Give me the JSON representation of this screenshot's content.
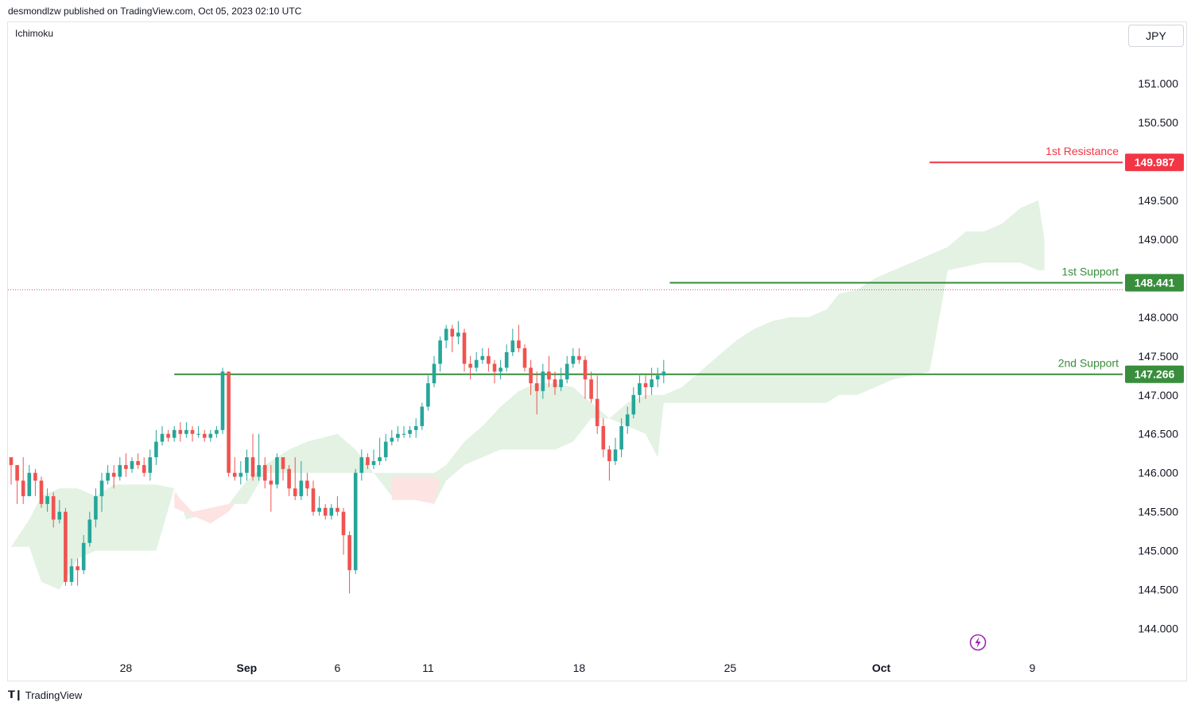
{
  "header": {
    "publisher": "desmondlzw published on TradingView.com, Oct 05, 2023 02:10 UTC"
  },
  "indicator": "Ichimoku",
  "currency": "JPY",
  "footer": {
    "logo_text": "TradingView",
    "logo_icon": "tradingview-logo-icon"
  },
  "colors": {
    "up": "#26a69a",
    "down": "#ef5350",
    "resistance": "#f23645",
    "support": "#388e3c",
    "cloud_bull": "#e3f2e3",
    "cloud_bear": "#fde4e3",
    "grid_text": "#131722"
  },
  "chart_data": {
    "type": "candlestick",
    "title": "",
    "ylim": [
      143.7,
      151.5
    ],
    "y_ticks": [
      "151.000",
      "150.500",
      "150.000",
      "149.500",
      "149.000",
      "148.500",
      "148.000",
      "147.500",
      "147.000",
      "146.500",
      "146.000",
      "145.500",
      "145.000",
      "144.500",
      "144.000"
    ],
    "x_ticks": [
      {
        "label": "28",
        "bar": 19,
        "bold": false
      },
      {
        "label": "Sep",
        "bar": 39,
        "bold": true
      },
      {
        "label": "6",
        "bar": 54,
        "bold": false
      },
      {
        "label": "11",
        "bar": 69,
        "bold": false
      },
      {
        "label": "18",
        "bar": 94,
        "bold": false
      },
      {
        "label": "25",
        "bar": 119,
        "bold": false
      },
      {
        "label": "Oct",
        "bar": 144,
        "bold": true
      },
      {
        "label": "9",
        "bar": 169,
        "bold": false
      }
    ],
    "levels": [
      {
        "name": "1st Resistance",
        "price": 149.987,
        "price_label": "149.987",
        "role": "resistance",
        "from_bar": 152
      },
      {
        "name": "1st Support",
        "price": 148.441,
        "price_label": "148.441",
        "role": "support",
        "from_bar": 109
      },
      {
        "name": "2nd Support",
        "price": 147.266,
        "price_label": "147.266",
        "role": "support",
        "from_bar": 27
      }
    ],
    "last_price_dotted": 148.35,
    "cloud": [
      [
        0,
        145.05,
        145.05
      ],
      [
        3,
        145.4,
        145.05
      ],
      [
        5,
        145.7,
        144.6
      ],
      [
        8,
        145.8,
        144.5
      ],
      [
        11,
        145.8,
        144.9
      ],
      [
        14,
        145.7,
        145.0
      ],
      [
        17,
        145.85,
        145.0
      ],
      [
        20,
        145.85,
        145.0
      ],
      [
        24,
        145.85,
        145.0
      ],
      [
        27,
        145.8,
        145.8
      ],
      [
        29,
        145.5,
        145.4
      ],
      [
        33,
        145.5,
        145.5
      ],
      [
        36,
        145.6,
        145.6
      ],
      [
        39,
        145.9,
        145.6
      ],
      [
        42,
        146.1,
        146.0
      ],
      [
        46,
        146.3,
        146.0
      ],
      [
        49,
        146.4,
        146.0
      ],
      [
        54,
        146.5,
        146.0
      ],
      [
        57,
        146.3,
        146.0
      ],
      [
        60,
        146.0,
        146.0
      ],
      [
        63,
        146.0,
        145.7
      ],
      [
        67,
        146.0,
        145.7
      ],
      [
        70,
        146.0,
        145.6
      ],
      [
        72,
        146.1,
        145.9
      ],
      [
        75,
        146.4,
        146.1
      ],
      [
        78,
        146.6,
        146.2
      ],
      [
        81,
        146.85,
        146.3
      ],
      [
        84,
        147.05,
        146.3
      ],
      [
        87,
        147.15,
        146.3
      ],
      [
        90,
        147.15,
        146.3
      ],
      [
        93,
        147.1,
        146.4
      ],
      [
        96,
        146.9,
        146.7
      ],
      [
        99,
        146.7,
        146.7
      ],
      [
        102,
        146.9,
        146.6
      ],
      [
        105,
        147.0,
        146.5
      ],
      [
        107,
        147.0,
        146.2
      ],
      [
        108,
        147.0,
        146.9
      ],
      [
        111,
        147.1,
        146.9
      ],
      [
        114,
        147.3,
        146.9
      ],
      [
        117,
        147.5,
        146.9
      ],
      [
        120,
        147.7,
        146.9
      ],
      [
        123,
        147.85,
        146.9
      ],
      [
        126,
        147.95,
        146.9
      ],
      [
        129,
        148.0,
        146.9
      ],
      [
        132,
        148.0,
        146.9
      ],
      [
        135,
        148.1,
        146.9
      ],
      [
        137,
        148.3,
        147.0
      ],
      [
        140,
        148.35,
        147.0
      ],
      [
        143,
        148.5,
        147.1
      ],
      [
        146,
        148.6,
        147.2
      ],
      [
        149,
        148.7,
        147.25
      ],
      [
        152,
        148.8,
        147.3
      ],
      [
        155,
        148.9,
        148.6
      ],
      [
        158,
        149.1,
        148.65
      ],
      [
        161,
        149.1,
        148.7
      ],
      [
        164,
        149.2,
        148.7
      ],
      [
        167,
        149.4,
        148.7
      ],
      [
        170,
        149.5,
        148.6
      ],
      [
        171,
        149.0,
        148.6
      ]
    ],
    "bear_cloud_segments": [
      [
        [
          27,
          145.75,
          145.55
        ],
        [
          30,
          145.5,
          145.45
        ],
        [
          33,
          145.55,
          145.35
        ],
        [
          36,
          145.6,
          145.5
        ],
        [
          37,
          145.6,
          145.6
        ]
      ],
      [
        [
          63,
          145.95,
          145.65
        ],
        [
          67,
          145.95,
          145.65
        ],
        [
          70,
          145.95,
          145.6
        ],
        [
          71,
          145.9,
          145.9
        ]
      ]
    ],
    "series": [
      [
        146.2,
        146.1,
        146.2,
        145.85
      ],
      [
        146.1,
        145.9,
        146.1,
        145.6
      ],
      [
        145.9,
        145.7,
        146.2,
        145.6
      ],
      [
        145.7,
        146.0,
        146.1,
        145.7
      ],
      [
        146.0,
        145.9,
        146.05,
        145.7
      ],
      [
        145.9,
        145.6,
        145.95,
        145.55
      ],
      [
        145.6,
        145.7,
        145.8,
        145.5
      ],
      [
        145.7,
        145.4,
        145.75,
        145.3
      ],
      [
        145.4,
        145.5,
        145.65,
        145.35
      ],
      [
        145.5,
        144.6,
        145.55,
        144.55
      ],
      [
        144.6,
        144.8,
        144.9,
        144.55
      ],
      [
        144.8,
        144.75,
        144.9,
        144.55
      ],
      [
        144.75,
        145.1,
        145.2,
        144.7
      ],
      [
        145.1,
        145.4,
        145.5,
        145.05
      ],
      [
        145.4,
        145.7,
        145.8,
        145.3
      ],
      [
        145.7,
        145.9,
        146.0,
        145.5
      ],
      [
        145.9,
        146.0,
        146.1,
        145.85
      ],
      [
        146.0,
        145.95,
        146.1,
        145.8
      ],
      [
        145.95,
        146.1,
        146.2,
        145.9
      ],
      [
        146.1,
        146.05,
        146.25,
        145.95
      ],
      [
        146.05,
        146.15,
        146.2,
        146.0
      ],
      [
        146.15,
        146.1,
        146.25,
        146.05
      ],
      [
        146.1,
        146.0,
        146.2,
        145.95
      ],
      [
        146.0,
        146.2,
        146.3,
        145.9
      ],
      [
        146.2,
        146.4,
        146.55,
        146.1
      ],
      [
        146.4,
        146.5,
        146.6,
        146.35
      ],
      [
        146.5,
        146.45,
        146.55,
        146.4
      ],
      [
        146.45,
        146.55,
        146.6,
        146.4
      ],
      [
        146.55,
        146.5,
        146.65,
        146.4
      ],
      [
        146.5,
        146.55,
        146.65,
        146.45
      ],
      [
        146.55,
        146.5,
        146.6,
        146.4
      ],
      [
        146.5,
        146.5,
        146.6,
        146.45
      ],
      [
        146.5,
        146.45,
        146.55,
        146.4
      ],
      [
        146.45,
        146.5,
        146.55,
        146.4
      ],
      [
        146.5,
        146.55,
        146.6,
        146.45
      ],
      [
        146.55,
        147.3,
        147.35,
        146.5
      ],
      [
        147.3,
        146.0,
        147.3,
        145.95
      ],
      [
        146.0,
        145.95,
        146.2,
        145.9
      ],
      [
        145.95,
        146.0,
        146.15,
        145.85
      ],
      [
        146.0,
        146.2,
        146.3,
        145.9
      ],
      [
        146.2,
        145.95,
        146.5,
        145.9
      ],
      [
        145.95,
        146.1,
        146.5,
        145.9
      ],
      [
        146.1,
        145.9,
        146.2,
        145.8
      ],
      [
        145.9,
        145.85,
        146.1,
        145.5
      ],
      [
        145.85,
        146.2,
        146.25,
        145.8
      ],
      [
        146.2,
        146.05,
        146.2,
        145.9
      ],
      [
        146.05,
        145.8,
        146.1,
        145.7
      ],
      [
        145.8,
        145.7,
        146.2,
        145.65
      ],
      [
        145.7,
        145.9,
        146.15,
        145.65
      ],
      [
        145.9,
        145.8,
        146.0,
        145.7
      ],
      [
        145.8,
        145.5,
        145.9,
        145.45
      ],
      [
        145.5,
        145.55,
        145.7,
        145.45
      ],
      [
        145.55,
        145.45,
        145.6,
        145.4
      ],
      [
        145.45,
        145.55,
        145.6,
        145.4
      ],
      [
        145.55,
        145.5,
        145.7,
        145.45
      ],
      [
        145.5,
        145.2,
        145.55,
        144.95
      ],
      [
        145.2,
        144.75,
        145.25,
        144.45
      ],
      [
        144.75,
        146.0,
        146.05,
        144.7
      ],
      [
        146.0,
        146.2,
        146.3,
        145.9
      ],
      [
        146.2,
        146.1,
        146.25,
        146.05
      ],
      [
        146.1,
        146.15,
        146.3,
        146.05
      ],
      [
        146.15,
        146.2,
        146.45,
        146.1
      ],
      [
        146.2,
        146.4,
        146.5,
        146.15
      ],
      [
        146.4,
        146.45,
        146.55,
        146.35
      ],
      [
        146.45,
        146.5,
        146.6,
        146.4
      ],
      [
        146.5,
        146.5,
        146.6,
        146.45
      ],
      [
        146.5,
        146.55,
        146.6,
        146.45
      ],
      [
        146.55,
        146.6,
        146.7,
        146.45
      ],
      [
        146.6,
        146.85,
        146.9,
        146.55
      ],
      [
        146.85,
        147.15,
        147.25,
        146.8
      ],
      [
        147.15,
        147.4,
        147.5,
        147.1
      ],
      [
        147.4,
        147.7,
        147.75,
        147.3
      ],
      [
        147.7,
        147.85,
        147.9,
        147.6
      ],
      [
        147.85,
        147.75,
        147.9,
        147.55
      ],
      [
        147.75,
        147.8,
        147.95,
        147.65
      ],
      [
        147.8,
        147.4,
        147.85,
        147.3
      ],
      [
        147.4,
        147.35,
        147.5,
        147.2
      ],
      [
        147.35,
        147.45,
        147.55,
        147.3
      ],
      [
        147.45,
        147.5,
        147.6,
        147.4
      ],
      [
        147.5,
        147.4,
        147.6,
        147.3
      ],
      [
        147.4,
        147.3,
        147.45,
        147.15
      ],
      [
        147.3,
        147.35,
        147.45,
        147.2
      ],
      [
        147.35,
        147.55,
        147.65,
        147.3
      ],
      [
        147.55,
        147.7,
        147.85,
        147.5
      ],
      [
        147.7,
        147.6,
        147.9,
        147.55
      ],
      [
        147.6,
        147.35,
        147.65,
        147.3
      ],
      [
        147.35,
        147.15,
        147.45,
        147.0
      ],
      [
        147.15,
        147.05,
        147.3,
        146.75
      ],
      [
        147.05,
        147.3,
        147.4,
        146.95
      ],
      [
        147.3,
        147.2,
        147.5,
        147.1
      ],
      [
        147.2,
        147.1,
        147.3,
        147.0
      ],
      [
        147.1,
        147.2,
        147.35,
        147.05
      ],
      [
        147.2,
        147.4,
        147.5,
        147.15
      ],
      [
        147.4,
        147.5,
        147.6,
        147.35
      ],
      [
        147.5,
        147.45,
        147.6,
        147.4
      ],
      [
        147.45,
        147.2,
        147.5,
        146.95
      ],
      [
        147.2,
        146.95,
        147.3,
        146.9
      ],
      [
        146.95,
        146.6,
        147.25,
        146.5
      ],
      [
        146.6,
        146.3,
        146.7,
        146.2
      ],
      [
        146.3,
        146.15,
        146.35,
        145.9
      ],
      [
        146.15,
        146.3,
        146.45,
        146.1
      ],
      [
        146.3,
        146.6,
        146.7,
        146.2
      ],
      [
        146.6,
        146.75,
        146.85,
        146.5
      ],
      [
        146.75,
        147.0,
        147.1,
        146.7
      ],
      [
        147.0,
        147.15,
        147.25,
        146.9
      ],
      [
        147.15,
        147.1,
        147.25,
        146.95
      ],
      [
        147.1,
        147.2,
        147.35,
        147.0
      ],
      [
        147.2,
        147.25,
        147.35,
        147.1
      ],
      [
        147.25,
        147.3,
        147.45,
        147.15
      ]
    ]
  }
}
